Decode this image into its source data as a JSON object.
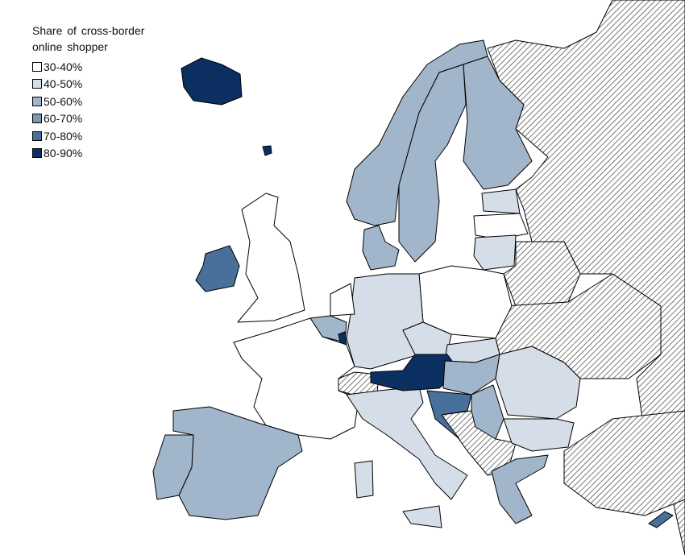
{
  "legend": {
    "title": "Share of cross-border online shopper",
    "items": [
      {
        "label": "30-40%",
        "color": "#ffffff"
      },
      {
        "label": "40-50%",
        "color": "#d5dee8"
      },
      {
        "label": "50-60%",
        "color": "#a1b6ca"
      },
      {
        "label": "60-70%",
        "color": "#7b98b3"
      },
      {
        "label": "70-80%",
        "color": "#48709a"
      },
      {
        "label": "80-90%",
        "color": "#0c2f62"
      }
    ]
  }
}
